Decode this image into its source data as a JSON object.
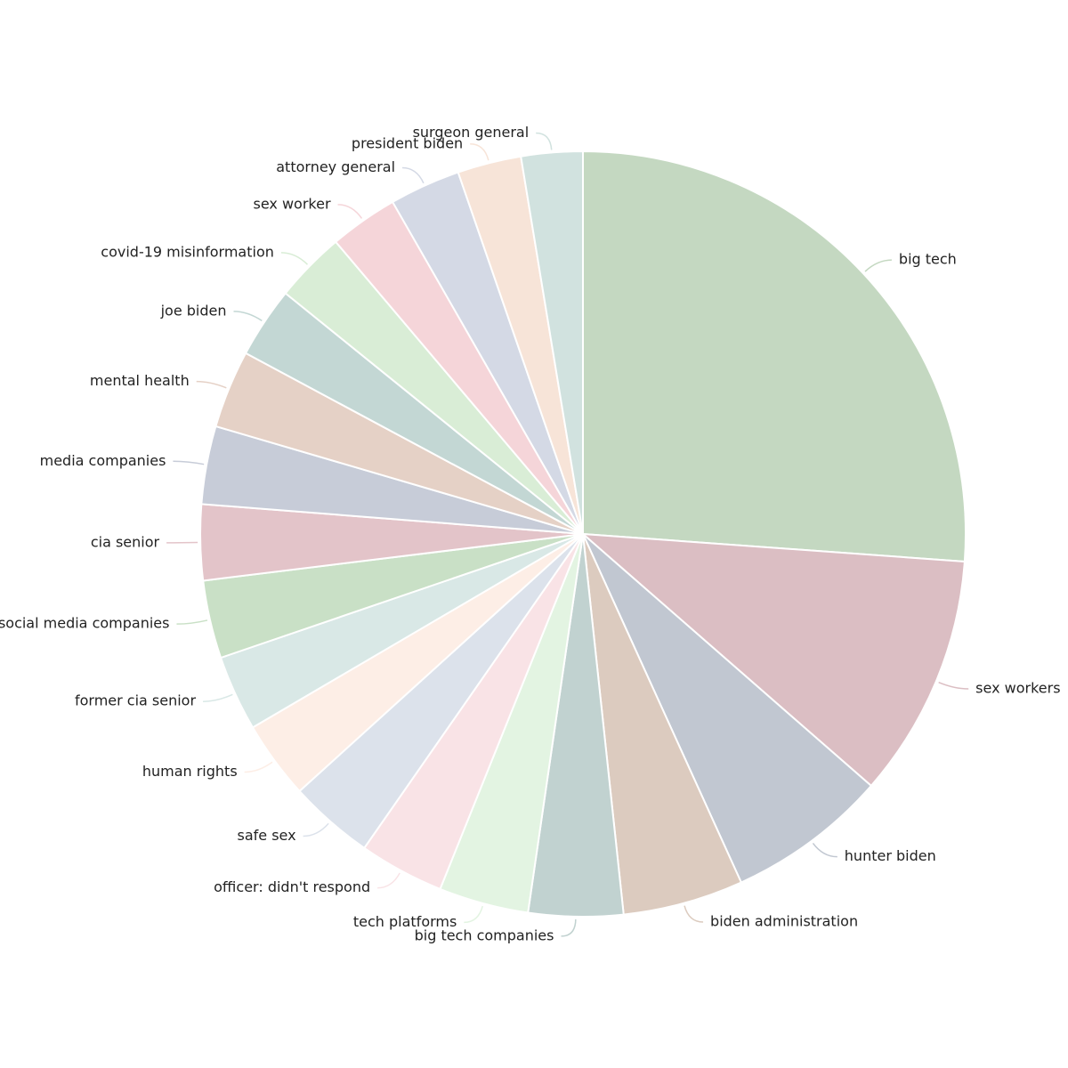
{
  "chart_data": {
    "type": "pie",
    "categories": [
      "big tech",
      "sex workers",
      "hunter biden",
      "biden administration",
      "big tech companies",
      "tech platforms",
      "officer: didn't respond",
      "safe sex",
      "human rights",
      "former cia senior",
      "social media companies",
      "cia senior",
      "media companies",
      "mental health",
      "joe biden",
      "covid-19 misinformation",
      "sex worker",
      "attorney general",
      "president biden",
      "surgeon general"
    ],
    "values": [
      26.2,
      10.3,
      6.8,
      5.1,
      4.0,
      3.8,
      3.6,
      3.6,
      3.3,
      3.2,
      3.3,
      3.2,
      3.3,
      3.3,
      3.0,
      3.0,
      2.9,
      3.0,
      2.7,
      2.6
    ],
    "colors": [
      "#c4d8c1",
      "#dbbec3",
      "#c1c7d1",
      "#dccbbf",
      "#c1d2d0",
      "#e3f4e2",
      "#f9e3e6",
      "#dce2eb",
      "#fdeee6",
      "#d9e8e6",
      "#c9e0c6",
      "#e3c4c9",
      "#c7ccd8",
      "#e5d1c6",
      "#c3d7d4",
      "#d9edd6",
      "#f5d5d9",
      "#d4d9e5",
      "#f7e4d8",
      "#d1e2df"
    ]
  }
}
